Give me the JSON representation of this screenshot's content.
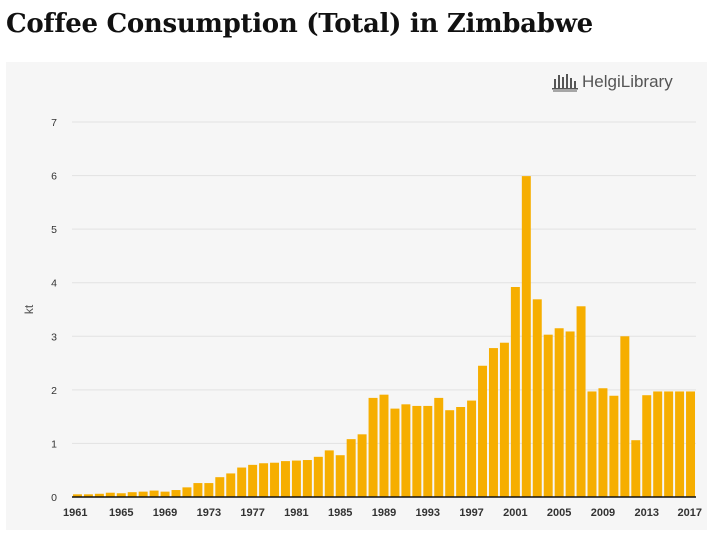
{
  "page": {
    "title": "Coffee Consumption (Total) in Zimbabwe",
    "logo_text": "HelgiLibrary",
    "logo_icon": "bar-chart-skyline-icon"
  },
  "chart_data": {
    "type": "bar",
    "title": "Coffee Consumption (Total) in Zimbabwe",
    "xlabel": "",
    "ylabel": "kt",
    "ylim": [
      0,
      7
    ],
    "yticks": [
      "0",
      "1",
      "2",
      "3",
      "4",
      "5",
      "6",
      "7"
    ],
    "xticks": [
      "1961",
      "1965",
      "1969",
      "1973",
      "1977",
      "1981",
      "1985",
      "1989",
      "1993",
      "1997",
      "2001",
      "2005",
      "2009",
      "2013",
      "2017"
    ],
    "grid": true,
    "legend": "none",
    "bar_color": "#f6ae00",
    "categories": [
      "1961",
      "1962",
      "1963",
      "1964",
      "1965",
      "1966",
      "1967",
      "1968",
      "1969",
      "1970",
      "1971",
      "1972",
      "1973",
      "1974",
      "1975",
      "1976",
      "1977",
      "1978",
      "1979",
      "1980",
      "1981",
      "1982",
      "1983",
      "1984",
      "1985",
      "1986",
      "1987",
      "1988",
      "1989",
      "1990",
      "1991",
      "1992",
      "1993",
      "1994",
      "1995",
      "1996",
      "1997",
      "1998",
      "1999",
      "2000",
      "2001",
      "2002",
      "2003",
      "2004",
      "2005",
      "2006",
      "2007",
      "2008",
      "2009",
      "2010",
      "2011",
      "2012",
      "2013",
      "2014",
      "2015",
      "2016",
      "2017"
    ],
    "values": [
      0.05,
      0.05,
      0.06,
      0.08,
      0.07,
      0.09,
      0.1,
      0.12,
      0.1,
      0.13,
      0.18,
      0.26,
      0.26,
      0.37,
      0.44,
      0.55,
      0.6,
      0.63,
      0.64,
      0.67,
      0.68,
      0.69,
      0.75,
      0.87,
      0.78,
      1.08,
      1.17,
      1.85,
      1.91,
      1.65,
      1.73,
      1.7,
      1.7,
      1.85,
      1.62,
      1.68,
      1.8,
      2.45,
      2.78,
      2.88,
      3.92,
      5.99,
      3.69,
      3.03,
      3.15,
      3.09,
      3.56,
      1.97,
      2.03,
      1.89,
      3.0,
      1.06,
      1.9,
      1.97,
      1.97,
      1.97,
      1.97
    ]
  }
}
